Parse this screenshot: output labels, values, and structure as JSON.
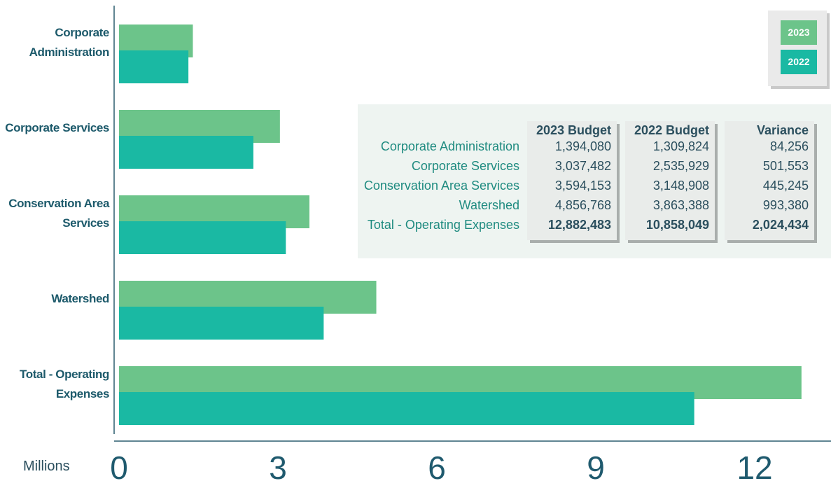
{
  "chart_data": {
    "type": "bar",
    "orientation": "horizontal",
    "x_label": "Millions",
    "categories": [
      "Corporate Administration",
      "Corporate Services",
      "Conservation Area Services",
      "Watershed",
      "Total - Operating Expenses"
    ],
    "series": [
      {
        "name": "2023",
        "color": "#6cc48a",
        "values": [
          1.39408,
          3.037482,
          3.594153,
          4.856768,
          12.882483
        ],
        "value_labels": [
          "1,394,080",
          "3,037,482",
          "3,594,153",
          "4,856,768",
          "12,882,483"
        ]
      },
      {
        "name": "2022",
        "color": "#1ab9a3",
        "values": [
          1.309824,
          2.535929,
          3.148908,
          3.863388,
          10.858049
        ],
        "value_labels": [
          "1,309,824",
          "2,535,929",
          "3,148,908",
          "3,863,388",
          "10,858,049"
        ]
      }
    ],
    "table_columns": [
      "2023 Budget",
      "2022 Budget",
      "Variance"
    ],
    "variance": [
      "84,256",
      "501,553",
      "445,245",
      "993,380",
      "2,024,434"
    ],
    "xlim": [
      0,
      13.4
    ],
    "xticks": [
      0,
      3,
      6,
      9,
      12
    ],
    "legend": "upper right"
  }
}
